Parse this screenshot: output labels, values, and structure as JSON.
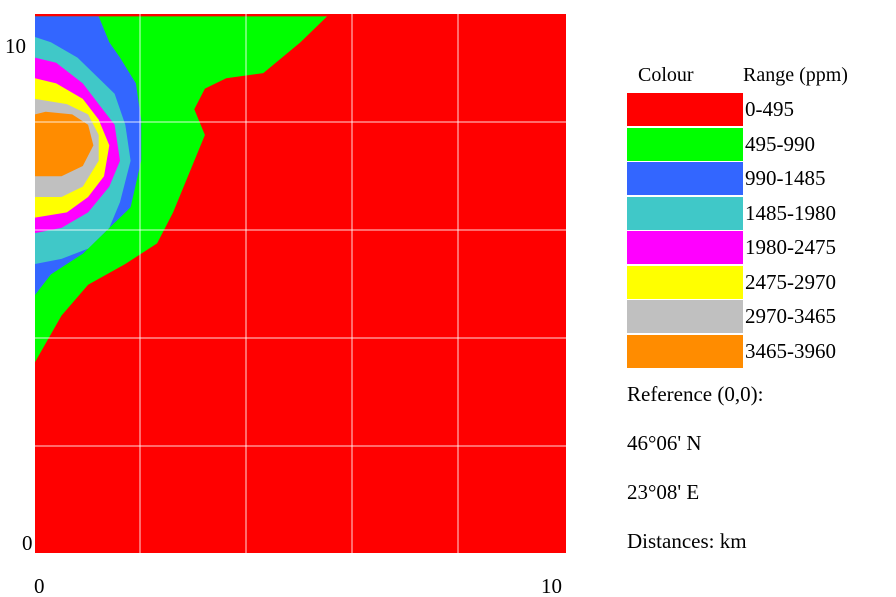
{
  "chart_data": {
    "type": "contour",
    "x_ticks": [
      "0",
      "10"
    ],
    "y_ticks": [
      "0",
      "10"
    ],
    "xlim": [
      0,
      10
    ],
    "ylim": [
      0,
      10
    ],
    "grid": true,
    "legend_position": "right",
    "legend": {
      "header_colour": "Colour",
      "header_range": "Range (ppm)",
      "entries": [
        {
          "range": "0-495",
          "color": "#ff0000"
        },
        {
          "range": "495-990",
          "color": "#00ff00"
        },
        {
          "range": "990-1485",
          "color": "#3366ff"
        },
        {
          "range": "1485-1980",
          "color": "#40c8c8"
        },
        {
          "range": "1980-2475",
          "color": "#ff00ff"
        },
        {
          "range": "2475-2970",
          "color": "#ffff00"
        },
        {
          "range": "2970-3465",
          "color": "#c0c0c0"
        },
        {
          "range": "3465-3960",
          "color": "#ff8c00"
        }
      ]
    },
    "contours": [
      {
        "range": "495-990",
        "points": [
          [
            0,
            3.7
          ],
          [
            0.5,
            4.6
          ],
          [
            1,
            5.2
          ],
          [
            1.7,
            5.6
          ],
          [
            2.3,
            6.0
          ],
          [
            2.6,
            6.6
          ],
          [
            3.0,
            7.6
          ],
          [
            3.2,
            8.1
          ],
          [
            3.0,
            8.6
          ],
          [
            3.2,
            9.0
          ],
          [
            3.6,
            9.2
          ],
          [
            4.3,
            9.3
          ],
          [
            5.0,
            9.9
          ],
          [
            5.5,
            10.4
          ],
          [
            0,
            10.4
          ]
        ]
      },
      {
        "range": "990-1485",
        "points": [
          [
            0,
            5.0
          ],
          [
            0.3,
            5.4
          ],
          [
            0.9,
            5.8
          ],
          [
            1.4,
            6.3
          ],
          [
            1.8,
            6.7
          ],
          [
            2.0,
            7.6
          ],
          [
            2.0,
            8.4
          ],
          [
            1.9,
            9.1
          ],
          [
            1.6,
            9.6
          ],
          [
            1.4,
            9.9
          ],
          [
            1.2,
            10.4
          ],
          [
            0,
            10.4
          ]
        ]
      },
      {
        "range": "1485-1980",
        "points": [
          [
            0,
            5.6
          ],
          [
            0.5,
            5.7
          ],
          [
            1.0,
            5.9
          ],
          [
            1.4,
            6.3
          ],
          [
            1.6,
            6.8
          ],
          [
            1.8,
            7.6
          ],
          [
            1.7,
            8.3
          ],
          [
            1.5,
            8.9
          ],
          [
            1.2,
            9.2
          ],
          [
            0.8,
            9.6
          ],
          [
            0.3,
            9.9
          ],
          [
            0,
            10.0
          ]
        ]
      },
      {
        "range": "1980-2475",
        "points": [
          [
            0,
            6.2
          ],
          [
            0.5,
            6.3
          ],
          [
            1.0,
            6.6
          ],
          [
            1.4,
            7.1
          ],
          [
            1.6,
            7.6
          ],
          [
            1.5,
            8.3
          ],
          [
            1.2,
            8.7
          ],
          [
            0.9,
            9.1
          ],
          [
            0.4,
            9.5
          ],
          [
            0,
            9.6
          ]
        ]
      },
      {
        "range": "2475-2970",
        "points": [
          [
            0,
            6.5
          ],
          [
            0.6,
            6.6
          ],
          [
            1.0,
            6.9
          ],
          [
            1.3,
            7.3
          ],
          [
            1.4,
            7.9
          ],
          [
            1.2,
            8.4
          ],
          [
            0.9,
            8.8
          ],
          [
            0.4,
            9.1
          ],
          [
            0,
            9.2
          ]
        ]
      },
      {
        "range": "2970-3465",
        "points": [
          [
            0,
            6.9
          ],
          [
            0.5,
            6.9
          ],
          [
            0.9,
            7.1
          ],
          [
            1.2,
            7.6
          ],
          [
            1.2,
            8.1
          ],
          [
            1.0,
            8.5
          ],
          [
            0.6,
            8.7
          ],
          [
            0,
            8.8
          ]
        ]
      },
      {
        "range": "3465-3960",
        "points": [
          [
            0,
            7.3
          ],
          [
            0.5,
            7.3
          ],
          [
            0.9,
            7.5
          ],
          [
            1.1,
            7.9
          ],
          [
            1.0,
            8.3
          ],
          [
            0.7,
            8.5
          ],
          [
            0.2,
            8.55
          ],
          [
            0,
            8.5
          ]
        ]
      }
    ]
  },
  "notes": {
    "reference": "Reference (0,0):",
    "latitude": "46°06' N",
    "longitude": "23°08' E",
    "distances": "Distances: km"
  }
}
